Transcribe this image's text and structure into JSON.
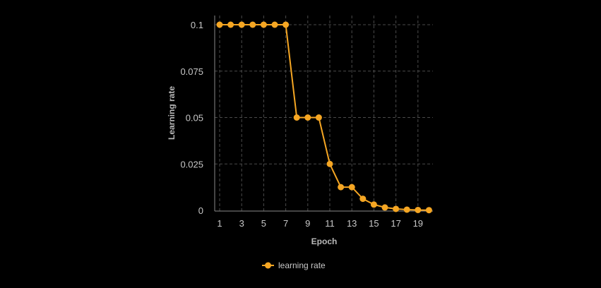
{
  "chart_data": {
    "type": "line",
    "title": "",
    "xlabel": "Epoch",
    "ylabel": "Learning rate",
    "x": [
      1,
      2,
      3,
      4,
      5,
      6,
      7,
      8,
      9,
      10,
      11,
      12,
      13,
      14,
      15,
      16,
      17,
      18,
      19,
      20
    ],
    "x_ticks": [
      1,
      3,
      5,
      7,
      9,
      11,
      13,
      15,
      17,
      19
    ],
    "y_ticks": [
      0,
      0.025,
      0.05,
      0.075,
      0.1
    ],
    "ylim": [
      0,
      0.1
    ],
    "grid": true,
    "legend_position": "bottom",
    "series": [
      {
        "name": "learning rate",
        "color": "#f5a623",
        "values": [
          0.1,
          0.1,
          0.1,
          0.1,
          0.1,
          0.1,
          0.1,
          0.05,
          0.05,
          0.05,
          0.025,
          0.0125,
          0.0125,
          0.00625,
          0.003125,
          0.0015625,
          0.00078,
          0.00039,
          0.0002,
          0.0001
        ]
      }
    ]
  }
}
